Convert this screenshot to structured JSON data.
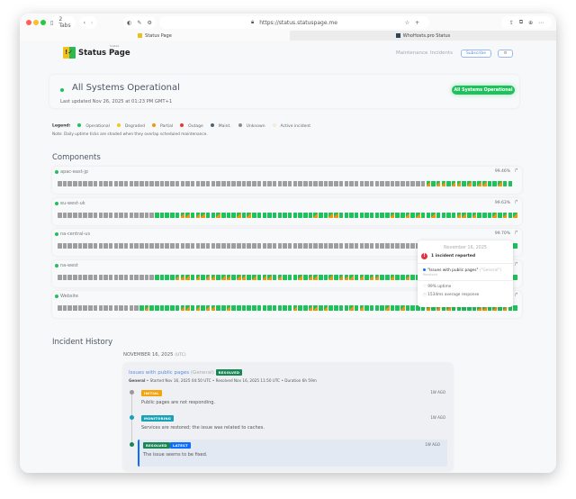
{
  "browser": {
    "tabs_count": "2 Tabs",
    "url": "https://status.statuspage.me",
    "tabs": [
      {
        "label": "Status Page",
        "active": true
      },
      {
        "label": "WhoHosts.pro Status",
        "active": false
      }
    ]
  },
  "header": {
    "logo_text": "Status Page",
    "logo_sub": "hosted",
    "nav": [
      "Maintenance",
      "Incidents"
    ],
    "subscribe": "Subscribe",
    "settings_icon": "gear-icon"
  },
  "status": {
    "title": "All Systems Operational",
    "last_updated": "Last updated Nov 26, 2025 at 01:23 PM GMT+1",
    "badge": "All Systems Operational",
    "color": "#1ec25a"
  },
  "legend": {
    "label": "Legend:",
    "items": [
      {
        "label": "Operational",
        "color": "#1ec25a"
      },
      {
        "label": "Degraded",
        "color": "#f5c518"
      },
      {
        "label": "Partial",
        "color": "#f2950a"
      },
      {
        "label": "Outage",
        "color": "#e53935"
      },
      {
        "label": "Maint.",
        "color": "#4f6272"
      },
      {
        "label": "Unknown",
        "color": "#8d8d8d"
      },
      {
        "label": "Active incident",
        "color": "#f8ead8"
      }
    ],
    "note": "Note: Daily uptime ticks are shaded when they overlap scheduled maintenance."
  },
  "components": {
    "title": "Components",
    "items": [
      {
        "name": "apac-east-jp",
        "uptime": "99.46%",
        "ticks": "uuuuuuuuuuuuuuuuuuuuuuuuuuuuuuuuuuuuuuuuuuuuuuuuuuuuuuuuuuuuuuuuuuuuuuuuhohhohhohohhoohoo"
      },
      {
        "name": "eu-west-uk",
        "uptime": "99.63%",
        "ticks": "uuuuuuuuuuuuuuuuuuuooooohhohhoohooohohoooooooooooohoohhoooooooooohoohohoohoooohhohooohohohhoo"
      },
      {
        "name": "na-central-us",
        "uptime": "99.70%",
        "ticks": "uuuuuuuuuuuuuuuuuuuuuuuuuuuuuuuuuuuuuuuuuuuuuuuuuuuuuuuuuuuuuuuuuuuuuuuuuuuuuuuuuuuuuuuuoo"
      },
      {
        "name": "na-west",
        "uptime": "",
        "ticks": "uuuuuuuuuuuuuuuuuuuoooohhhohohhohhohhohohhohooohohhoohohhhohohhoohoohoohooohohooohhoohohoo"
      },
      {
        "name": "Website",
        "uptime": "",
        "ticks": "uuuuuuuuuuuuuuuuohoooooohhohohhoohoooooooooooohoohhohoooohohoooohoohoooohohohooooohhohohooohoo"
      }
    ]
  },
  "tooltip": {
    "date": "November 16, 2025",
    "count": "1 incident reported",
    "incident": "\"Issues with public pages\"",
    "category": "(\"General\")",
    "state": "Resolved",
    "uptime": "99% uptime",
    "response": "1534ms average response"
  },
  "history": {
    "title": "Incident History",
    "date": "NOVEMBER 16, 2025",
    "tz": "(UTC)",
    "incident": {
      "title": "Issues with public pages",
      "category": "(General)",
      "badge": "RESOLVED",
      "meta_bold": "General",
      "meta": " • Started Nov 16, 2025 04:50 UTC • Resolved Nov 16, 2025 11:50 UTC • Duration 6h 59m",
      "updates": [
        {
          "badge": "INITIAL",
          "color": "#f5a30a",
          "dot": "#999",
          "text": "Public pages are not responding.",
          "ago": "1W AGO"
        },
        {
          "badge": "MONITORING",
          "color": "#17a2b8",
          "dot": "#17a2b8",
          "text": "Services are restored; the issue was related to caches.",
          "ago": "1W AGO"
        },
        {
          "badge": "RESOLVED",
          "badge2": "LATEST",
          "color": "#198754",
          "color2": "#0d6efd",
          "dot": "#198754",
          "text": "The issue seems to be fixed.",
          "ago": "1W AGO"
        }
      ]
    }
  }
}
